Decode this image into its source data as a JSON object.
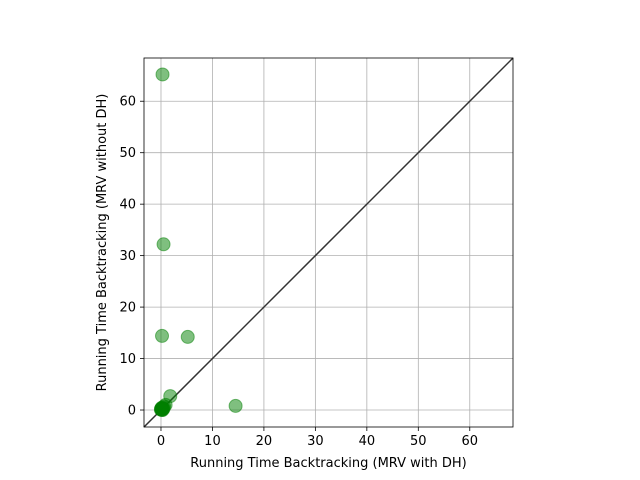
{
  "chart_data": {
    "type": "scatter",
    "xlabel": "Running Time Backtracking (MRV with DH)",
    "ylabel": "Running Time Backtracking (MRV without DH)",
    "xlim": [
      -3.3,
      68.4
    ],
    "ylim": [
      -3.3,
      68.4
    ],
    "xticks": [
      0,
      10,
      20,
      30,
      40,
      50,
      60
    ],
    "yticks": [
      0,
      10,
      20,
      30,
      40,
      50,
      60
    ],
    "tick_labels": [
      "0",
      "10",
      "20",
      "30",
      "40",
      "50",
      "60"
    ],
    "grid": true,
    "reference_line": "y = x",
    "colors": {
      "points": "#008000",
      "diagonal": "#333333",
      "grid": "#b0b0b0"
    },
    "series": [
      {
        "x": [
          0.3,
          0.5,
          0.2,
          5.2,
          1.8,
          14.5,
          0.9,
          0.6,
          0.3,
          0.1,
          0.0,
          0.4,
          0.2,
          0.1,
          0.5,
          0.0,
          0.3,
          0.1
        ],
        "y": [
          65.2,
          32.2,
          14.4,
          14.2,
          2.7,
          0.8,
          1.0,
          0.7,
          0.5,
          0.3,
          0.1,
          0.2,
          0.0,
          0.4,
          0.3,
          0.1,
          0.0,
          0.2
        ]
      }
    ]
  }
}
